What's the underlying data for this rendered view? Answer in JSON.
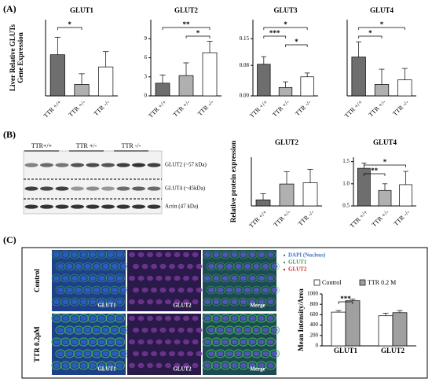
{
  "panels": [
    "(A)",
    "(B)",
    "(C)"
  ],
  "chart_data": [
    {
      "type": "bar",
      "title": "GLUT1",
      "ylabel": [
        "Liver Relative GLUTs",
        "Gene Expression"
      ],
      "categories": [
        "TTR +/+",
        "TTR +/-",
        "TTR -/-"
      ],
      "values": [
        5.4,
        1.5,
        3.8
      ],
      "errors": [
        2.3,
        1.4,
        2.0
      ],
      "colors": [
        "#6e6e6e",
        "#b0b0b0",
        "#ffffff"
      ],
      "ylim": [
        0,
        10
      ],
      "label_rotation": -45,
      "annotations": [
        {
          "from": 0,
          "to": 1,
          "label": "*"
        }
      ]
    },
    {
      "type": "bar",
      "title": "GLUT2",
      "categories": [
        "TTR +/+",
        "TTR +/-",
        "TTR -/-"
      ],
      "values": [
        2.0,
        3.2,
        6.8
      ],
      "errors": [
        1.3,
        2.0,
        1.8
      ],
      "colors": [
        "#6e6e6e",
        "#b0b0b0",
        "#ffffff"
      ],
      "ylim": [
        0,
        12
      ],
      "yticks": [
        0,
        3,
        6,
        9
      ],
      "label_rotation": -45,
      "annotations": [
        {
          "from": 0,
          "to": 2,
          "label": "**"
        },
        {
          "from": 1,
          "to": 2,
          "label": "*"
        }
      ]
    },
    {
      "type": "bar",
      "title": "GLUT3",
      "categories": [
        "TTR +/+",
        "TTR +/-",
        "TTR -/-"
      ],
      "values": [
        0.083,
        0.022,
        0.05
      ],
      "errors": [
        0.02,
        0.015,
        0.01
      ],
      "colors": [
        "#6e6e6e",
        "#b0b0b0",
        "#ffffff"
      ],
      "ylim": [
        0,
        0.2
      ],
      "yticks": [
        {
          "value": 0,
          "label": "0.00"
        },
        0.08,
        0.15
      ],
      "label_rotation": -45,
      "annotations": [
        {
          "from": 0,
          "to": 2,
          "label": "*"
        },
        {
          "from": 0,
          "to": 1,
          "label": "***"
        },
        {
          "from": 1,
          "to": 2,
          "label": "*"
        }
      ]
    },
    {
      "type": "bar",
      "title": "GLUT4",
      "categories": [
        "TTR +/+",
        "TTR +/-",
        "TTR -/-"
      ],
      "values": [
        5.1,
        1.5,
        2.1
      ],
      "errors": [
        2.0,
        2.0,
        1.5
      ],
      "colors": [
        "#6e6e6e",
        "#b0b0b0",
        "#ffffff"
      ],
      "ylim": [
        0,
        10
      ],
      "label_rotation": -45,
      "annotations": [
        {
          "from": 0,
          "to": 2,
          "label": "*"
        },
        {
          "from": 0,
          "to": 1,
          "label": "*"
        }
      ]
    },
    {
      "type": "bar",
      "title": "GLUT2",
      "ylabel": [
        "Relative protein expression"
      ],
      "categories": [
        "TTR +/+",
        "TTR +/-",
        "TTR -/-"
      ],
      "values": [
        2.5,
        9,
        9.5
      ],
      "errors": [
        2.5,
        5,
        5.5
      ],
      "colors": [
        "#6e6e6e",
        "#b0b0b0",
        "#ffffff"
      ],
      "ylim": [
        0,
        20
      ],
      "label_rotation": -45,
      "annotations": []
    },
    {
      "type": "bar",
      "title": "GLUT4",
      "categories": [
        "TTR +/+",
        "TTR +/-",
        "TTR -/-"
      ],
      "values": [
        1.35,
        0.85,
        0.98
      ],
      "errors": [
        0.12,
        0.15,
        0.3
      ],
      "colors": [
        "#6e6e6e",
        "#b0b0b0",
        "#ffffff"
      ],
      "ylim": [
        0.5,
        1.6
      ],
      "yticks": [
        0.5,
        {
          "value": 1,
          "label": "1.0"
        },
        1.5
      ],
      "label_rotation": -45,
      "annotations": [
        {
          "from": 0,
          "to": 2,
          "label": "*"
        },
        {
          "from": 0,
          "to": 1,
          "label": "**"
        }
      ]
    },
    {
      "type": "grouped_bar",
      "ylabel": [
        "Mean Intensity/Area"
      ],
      "categories": [
        "GLUT1",
        "GLUT2"
      ],
      "series": [
        {
          "name": "Control",
          "color": "#ffffff",
          "values": [
            650,
            580
          ],
          "errors": [
            30,
            50
          ]
        },
        {
          "name": "TTR 0.2 M",
          "color": "#a0a0a0",
          "values": [
            870,
            640
          ],
          "errors": [
            30,
            40
          ]
        }
      ],
      "ylim": [
        0,
        1000
      ],
      "yticks": [
        0,
        200,
        400,
        600,
        800,
        1000
      ],
      "label_rotation": 0,
      "annotations": [
        {
          "from": 0,
          "to": 1,
          "label": "***"
        }
      ]
    }
  ],
  "blot": {
    "lanes": [
      "TTR+/+",
      "TTR +/-",
      "TTR -/-"
    ],
    "bands": [
      "GLUT2 (~57 kDa)",
      "GLUT4 (~45kDa)",
      "Actin (47 kDa)"
    ]
  },
  "micrographs": {
    "rows": [
      "Control",
      "TTR 0.2μM"
    ],
    "columns": [
      "GLUT1",
      "GLUT2",
      "Merge"
    ],
    "stains": [
      {
        "label": "DAPI (Nucleus)",
        "color": "#4472c4"
      },
      {
        "label": "GLUT1",
        "color": "#2e9e3e"
      },
      {
        "label": "GLUT2",
        "color": "#d62020"
      }
    ]
  }
}
